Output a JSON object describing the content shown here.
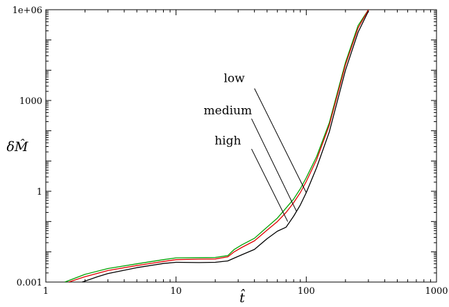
{
  "chart_data": {
    "type": "line",
    "xscale": "log",
    "yscale": "log",
    "xlim": [
      1,
      1000
    ],
    "ylim": [
      0.001,
      1000000
    ],
    "xlabel": "t̂",
    "ylabel": "δM̂",
    "x_ticks": [
      {
        "value": 1,
        "label": "1"
      },
      {
        "value": 10,
        "label": "10"
      },
      {
        "value": 100,
        "label": "100"
      },
      {
        "value": 1000,
        "label": "1000"
      }
    ],
    "y_ticks": [
      {
        "value": 0.001,
        "label": "0.001"
      },
      {
        "value": 1,
        "label": "1"
      },
      {
        "value": 1000,
        "label": "1000"
      },
      {
        "value": 1000000,
        "label": "1e+06"
      }
    ],
    "grid": false,
    "legend": "none",
    "series": [
      {
        "name": "low",
        "color": "#00a000",
        "x": [
          1.4,
          2,
          3,
          5,
          8,
          10,
          15,
          20,
          25,
          28,
          32,
          40,
          50,
          60,
          70,
          80,
          90,
          100,
          120,
          150,
          200,
          250,
          300
        ],
        "y": [
          0.001,
          0.0018,
          0.0028,
          0.004,
          0.0055,
          0.0063,
          0.0064,
          0.0065,
          0.0075,
          0.012,
          0.017,
          0.028,
          0.065,
          0.13,
          0.28,
          0.55,
          1.2,
          2.8,
          14,
          180,
          18000,
          300000,
          1000000
        ]
      },
      {
        "name": "medium",
        "color": "#e00000",
        "x": [
          1.5,
          2,
          3,
          5,
          8,
          10,
          15,
          20,
          25,
          28,
          32,
          40,
          50,
          60,
          70,
          80,
          90,
          100,
          120,
          150,
          200,
          250,
          300
        ],
        "y": [
          0.001,
          0.0015,
          0.0024,
          0.0035,
          0.0048,
          0.0055,
          0.0057,
          0.0058,
          0.0068,
          0.01,
          0.014,
          0.023,
          0.052,
          0.1,
          0.2,
          0.42,
          0.9,
          2.1,
          11,
          150,
          15000,
          250000,
          1000000
        ]
      },
      {
        "name": "high",
        "color": "#000000",
        "x": [
          1.9,
          2.5,
          3,
          5,
          8,
          10,
          15,
          20,
          25,
          28,
          32,
          40,
          50,
          60,
          70,
          80,
          90,
          100,
          120,
          150,
          200,
          250,
          300
        ],
        "y": [
          0.001,
          0.0015,
          0.0019,
          0.003,
          0.0041,
          0.0045,
          0.0044,
          0.0045,
          0.005,
          0.0062,
          0.008,
          0.012,
          0.027,
          0.048,
          0.065,
          0.15,
          0.35,
          0.9,
          6,
          90,
          10000,
          180000,
          900000
        ]
      }
    ],
    "annotations": [
      {
        "text": "low",
        "label_at": [
          28,
          4000
        ],
        "leader_from": [
          40,
          2500
        ],
        "leader_to": [
          100,
          0.9
        ]
      },
      {
        "text": "medium",
        "label_at": [
          25,
          350
        ],
        "leader_from": [
          38,
          250
        ],
        "leader_to": [
          84,
          0.22
        ]
      },
      {
        "text": "high",
        "label_at": [
          25,
          35
        ],
        "leader_from": [
          38,
          25
        ],
        "leader_to": [
          72,
          0.1
        ]
      }
    ]
  }
}
